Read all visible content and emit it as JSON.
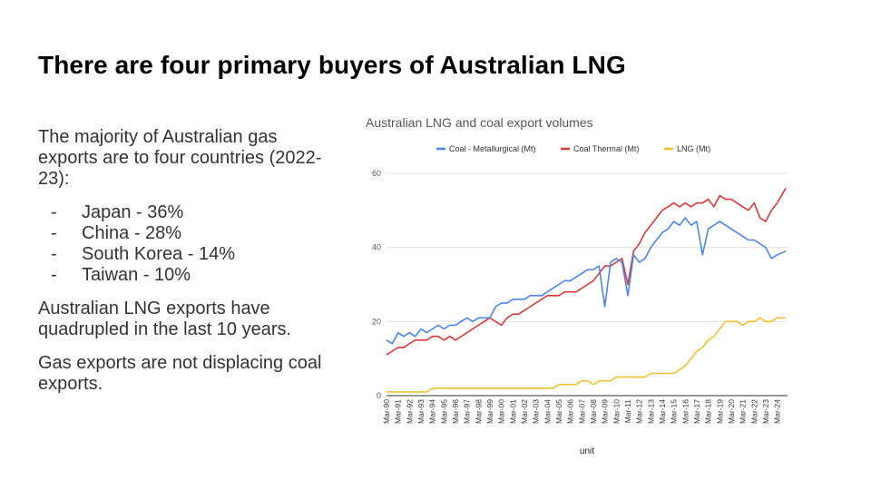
{
  "slide": {
    "title": "There are four primary buyers of Australian LNG",
    "intro": "The majority of Australian gas exports are to four countries (2022-23):",
    "bullets": [
      {
        "dash": "-",
        "text": "Japan - 36%"
      },
      {
        "dash": "-",
        "text": "China - 28%"
      },
      {
        "dash": "-",
        "text": "South Korea - 14%"
      },
      {
        "dash": "-",
        "text": "Taiwan - 10%"
      }
    ],
    "para2": "Australian LNG exports have quadrupled in the last 10 years.",
    "para3": "Gas exports are not displacing coal exports."
  },
  "chart_data": {
    "type": "line",
    "title": "Australian LNG and coal export volumes",
    "xlabel": "unit",
    "ylabel": "",
    "ylim": [
      0,
      60
    ],
    "yticks": [
      0,
      20,
      40,
      60
    ],
    "grid": "horizontal",
    "legend_position": "top",
    "x_tick_labels": [
      "Mar-90",
      "Mar-91",
      "Mar-92",
      "Mar-93",
      "Mar-94",
      "Mar-95",
      "Mar-96",
      "Mar-97",
      "Mar-98",
      "Mar-99",
      "Mar-00",
      "Mar-01",
      "Mar-02",
      "Mar-03",
      "Mar-04",
      "Mar-05",
      "Mar-06",
      "Mar-07",
      "Mar-08",
      "Mar-09",
      "Mar-10",
      "Mar-11",
      "Mar-12",
      "Mar-13",
      "Mar-14",
      "Mar-15",
      "Mar-16",
      "Mar-17",
      "Mar-18",
      "Mar-19",
      "Mar-20",
      "Mar-21",
      "Mar-22",
      "Mar-23",
      "Mar-24"
    ],
    "series": [
      {
        "name": "Coal - Metallurgical (Mt)",
        "color": "#4a86e8",
        "x": [
          1990.0,
          1990.5,
          1991.0,
          1991.5,
          1992.0,
          1992.5,
          1993.0,
          1993.5,
          1994.0,
          1994.5,
          1995.0,
          1995.5,
          1996.0,
          1996.5,
          1997.0,
          1997.5,
          1998.0,
          1998.5,
          1999.0,
          1999.5,
          2000.0,
          2000.5,
          2001.0,
          2001.5,
          2002.0,
          2002.5,
          2003.0,
          2003.5,
          2004.0,
          2004.5,
          2005.0,
          2005.5,
          2006.0,
          2006.5,
          2007.0,
          2007.5,
          2008.0,
          2008.5,
          2009.0,
          2009.5,
          2010.0,
          2010.5,
          2011.0,
          2011.5,
          2012.0,
          2012.5,
          2013.0,
          2013.5,
          2014.0,
          2014.5,
          2015.0,
          2015.5,
          2016.0,
          2016.5,
          2017.0,
          2017.5,
          2018.0,
          2018.5,
          2019.0,
          2019.5,
          2020.0,
          2020.5,
          2021.0,
          2021.5,
          2022.0,
          2022.5,
          2023.0,
          2023.5,
          2024.0,
          2024.75
        ],
        "y": [
          15,
          14,
          17,
          16,
          17,
          16,
          18,
          17,
          18,
          19,
          18,
          19,
          19,
          20,
          21,
          20,
          21,
          21,
          21,
          24,
          25,
          25,
          26,
          26,
          26,
          27,
          27,
          27,
          28,
          29,
          30,
          31,
          31,
          32,
          33,
          34,
          34,
          35,
          24,
          36,
          37,
          36,
          27,
          38,
          36,
          37,
          40,
          42,
          44,
          45,
          47,
          46,
          48,
          46,
          47,
          38,
          45,
          46,
          47,
          46,
          45,
          44,
          43,
          42,
          42,
          41,
          40,
          37,
          38,
          39
        ]
      },
      {
        "name": "Coal Thermal (Mt)",
        "color": "#d93a3a",
        "x": [
          1990.0,
          1990.5,
          1991.0,
          1991.5,
          1992.0,
          1992.5,
          1993.0,
          1993.5,
          1994.0,
          1994.5,
          1995.0,
          1995.5,
          1996.0,
          1996.5,
          1997.0,
          1997.5,
          1998.0,
          1998.5,
          1999.0,
          1999.5,
          2000.0,
          2000.5,
          2001.0,
          2001.5,
          2002.0,
          2002.5,
          2003.0,
          2003.5,
          2004.0,
          2004.5,
          2005.0,
          2005.5,
          2006.0,
          2006.5,
          2007.0,
          2007.5,
          2008.0,
          2008.5,
          2009.0,
          2009.5,
          2010.0,
          2010.5,
          2011.0,
          2011.5,
          2012.0,
          2012.5,
          2013.0,
          2013.5,
          2014.0,
          2014.5,
          2015.0,
          2015.5,
          2016.0,
          2016.5,
          2017.0,
          2017.5,
          2018.0,
          2018.5,
          2019.0,
          2019.5,
          2020.0,
          2020.5,
          2021.0,
          2021.5,
          2022.0,
          2022.5,
          2023.0,
          2023.5,
          2024.0,
          2024.75
        ],
        "y": [
          11,
          12,
          13,
          13,
          14,
          15,
          15,
          15,
          16,
          16,
          15,
          16,
          15,
          16,
          17,
          18,
          19,
          20,
          21,
          20,
          19,
          21,
          22,
          22,
          23,
          24,
          25,
          26,
          27,
          27,
          27,
          28,
          28,
          28,
          29,
          30,
          31,
          33,
          35,
          35,
          36,
          37,
          30,
          39,
          41,
          44,
          46,
          48,
          50,
          51,
          52,
          51,
          52,
          51,
          52,
          52,
          53,
          51,
          54,
          53,
          53,
          52,
          51,
          50,
          52,
          48,
          47,
          50,
          52,
          56
        ]
      },
      {
        "name": "LNG (Mt)",
        "color": "#f1c232",
        "x": [
          1990.0,
          1990.5,
          1991.0,
          1991.5,
          1992.0,
          1992.5,
          1993.0,
          1993.5,
          1994.0,
          1994.5,
          1995.0,
          1995.5,
          1996.0,
          1996.5,
          1997.0,
          1997.5,
          1998.0,
          1998.5,
          1999.0,
          1999.5,
          2000.0,
          2000.5,
          2001.0,
          2001.5,
          2002.0,
          2002.5,
          2003.0,
          2003.5,
          2004.0,
          2004.5,
          2005.0,
          2005.5,
          2006.0,
          2006.5,
          2007.0,
          2007.5,
          2008.0,
          2008.5,
          2009.0,
          2009.5,
          2010.0,
          2010.5,
          2011.0,
          2011.5,
          2012.0,
          2012.5,
          2013.0,
          2013.5,
          2014.0,
          2014.5,
          2015.0,
          2015.5,
          2016.0,
          2016.5,
          2017.0,
          2017.5,
          2018.0,
          2018.5,
          2019.0,
          2019.5,
          2020.0,
          2020.5,
          2021.0,
          2021.5,
          2022.0,
          2022.5,
          2023.0,
          2023.5,
          2024.0,
          2024.75
        ],
        "y": [
          1,
          1,
          1,
          1,
          1,
          1,
          1,
          1,
          2,
          2,
          2,
          2,
          2,
          2,
          2,
          2,
          2,
          2,
          2,
          2,
          2,
          2,
          2,
          2,
          2,
          2,
          2,
          2,
          2,
          2,
          3,
          3,
          3,
          3,
          4,
          4,
          3,
          4,
          4,
          4,
          5,
          5,
          5,
          5,
          5,
          5,
          6,
          6,
          6,
          6,
          6,
          7,
          8,
          10,
          12,
          13,
          15,
          16,
          18,
          20,
          20,
          20,
          19,
          20,
          20,
          21,
          20,
          20,
          21,
          21
        ]
      }
    ]
  }
}
